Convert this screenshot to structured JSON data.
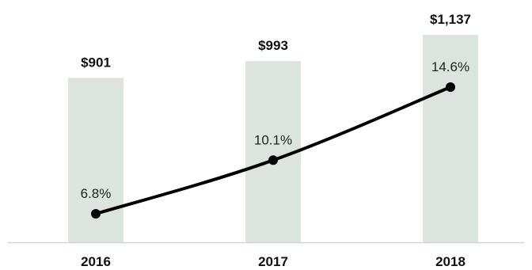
{
  "chart_data": {
    "type": "bar",
    "categories": [
      "2016",
      "2017",
      "2018"
    ],
    "series": [
      {
        "type": "bar",
        "values": [
          901,
          993,
          1137
        ],
        "labels": [
          "$901",
          "$993",
          "$1,137"
        ],
        "color": "#dde3df"
      },
      {
        "type": "line",
        "values": [
          6.8,
          10.1,
          14.6
        ],
        "labels": [
          "6.8%",
          "10.1%",
          "14.6%"
        ],
        "color": "#000000"
      }
    ],
    "title": "",
    "xlabel": "",
    "ylabel": "",
    "grid": false,
    "legend": "none",
    "axis_color": "#cfd4d1"
  }
}
